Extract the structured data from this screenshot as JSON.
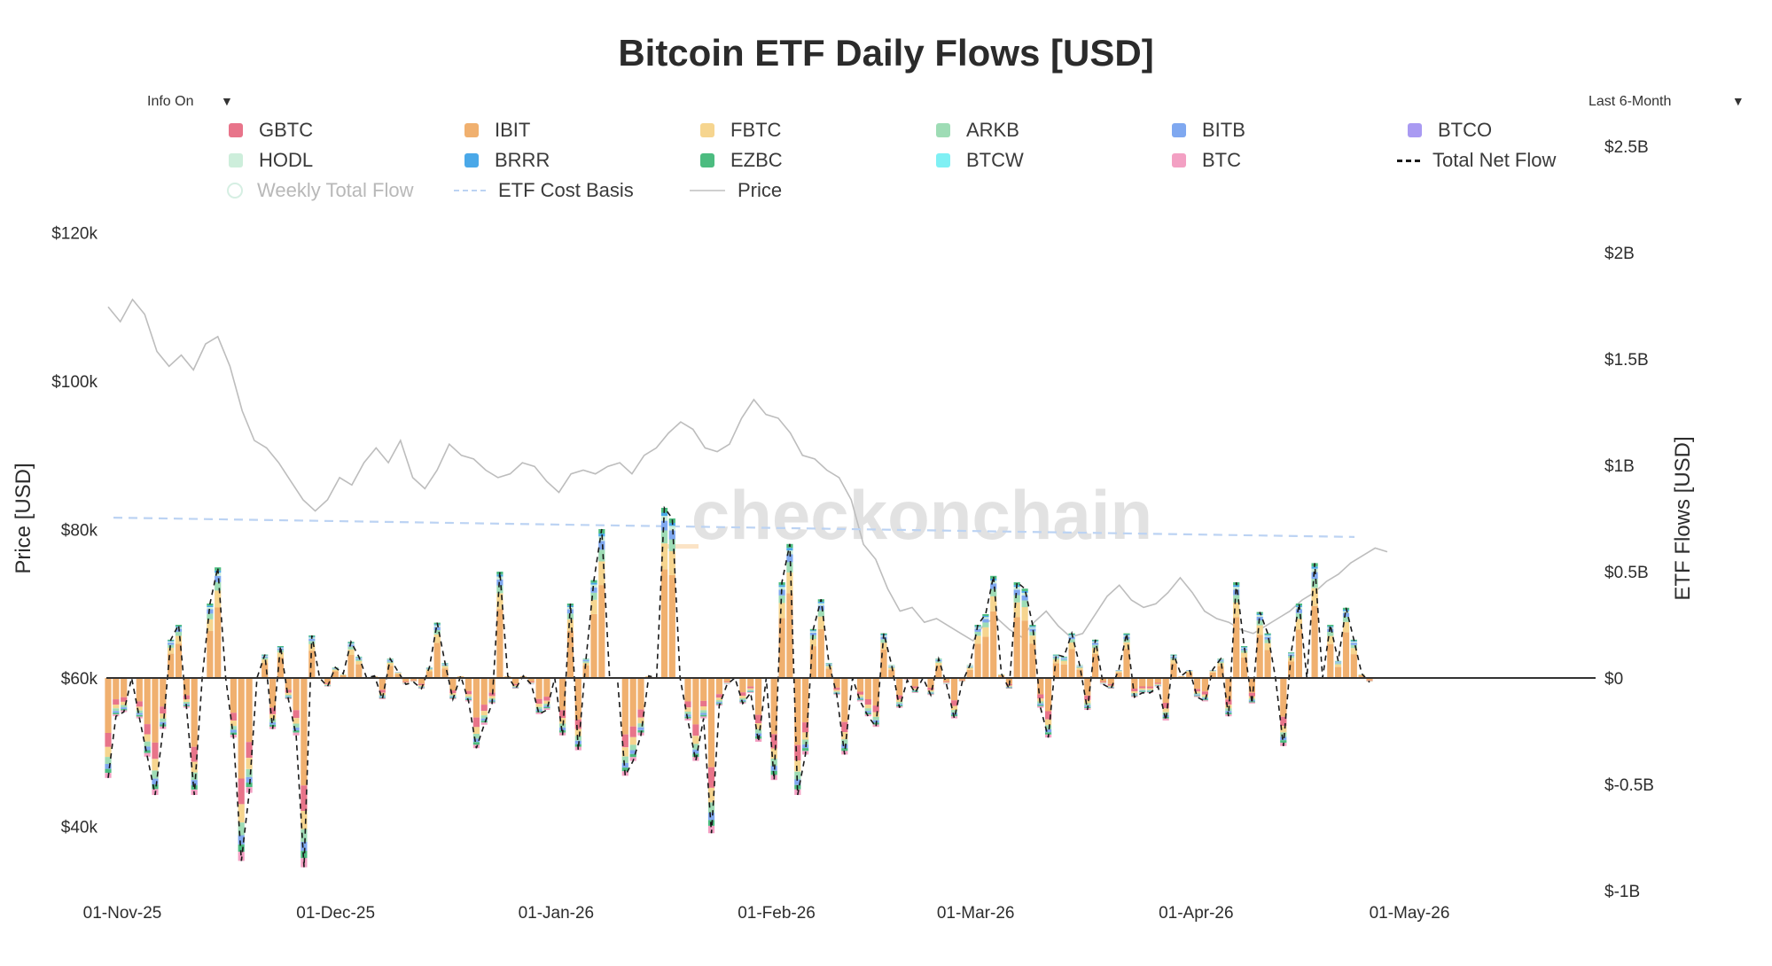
{
  "header": {
    "title": "Bitcoin ETF Daily Flows [USD]",
    "info_toggle": "Info On",
    "range_select": "Last 6-Month",
    "dropdown_arrow": "▼"
  },
  "watermark": "checkonchain",
  "colors": {
    "GBTC": "#e8748a",
    "IBIT": "#f0b06f",
    "FBTC": "#f6d58f",
    "ARKB": "#9edcb5",
    "BITB": "#7fa8f0",
    "BTCO": "#a99af2",
    "HODL": "#cdeedb",
    "BRRR": "#4aa8e8",
    "EZBC": "#4cbc80",
    "BTCW": "#7ff0f4",
    "BTC": "#f3a0c3",
    "price": "#bdbdbd",
    "cost_basis": "#bcd3f3",
    "total_net_flow": "#1a1a1a"
  },
  "legend": [
    {
      "key": "GBTC",
      "label": "GBTC",
      "color": "#e8748a",
      "type": "bar"
    },
    {
      "key": "IBIT",
      "label": "IBIT",
      "color": "#f0b06f",
      "type": "bar"
    },
    {
      "key": "FBTC",
      "label": "FBTC",
      "color": "#f6d58f",
      "type": "bar"
    },
    {
      "key": "ARKB",
      "label": "ARKB",
      "color": "#9edcb5",
      "type": "bar"
    },
    {
      "key": "BITB",
      "label": "BITB",
      "color": "#7fa8f0",
      "type": "bar"
    },
    {
      "key": "BTCO",
      "label": "BTCO",
      "color": "#a99af2",
      "type": "bar"
    },
    {
      "key": "HODL",
      "label": "HODL",
      "color": "#cdeedb",
      "type": "bar"
    },
    {
      "key": "BRRR",
      "label": "BRRR",
      "color": "#4aa8e8",
      "type": "bar"
    },
    {
      "key": "EZBC",
      "label": "EZBC",
      "color": "#4cbc80",
      "type": "bar"
    },
    {
      "key": "BTCW",
      "label": "BTCW",
      "color": "#7ff0f4",
      "type": "bar"
    },
    {
      "key": "BTC",
      "label": "BTC",
      "color": "#f3a0c3",
      "type": "bar"
    },
    {
      "key": "total",
      "label": "Total Net Flow",
      "color": "#1a1a1a",
      "type": "dash"
    },
    {
      "key": "weekly",
      "label": "Weekly Total Flow",
      "color": "#d6efe3",
      "type": "circle"
    },
    {
      "key": "cost",
      "label": "ETF Cost Basis",
      "color": "#bcd3f3",
      "type": "dash"
    },
    {
      "key": "price",
      "label": "Price",
      "color": "#bdbdbd",
      "type": "line"
    }
  ],
  "chart_data": {
    "type": "bar",
    "title": "Bitcoin ETF Daily Flows [USD]",
    "xlabel": "",
    "ylabel": "Price [USD]",
    "y2label": "ETF Flows [USD]",
    "x_range": [
      "2025-11-01",
      "2026-05-20"
    ],
    "x_ticks": [
      "01-Nov-25",
      "01-Dec-25",
      "01-Jan-26",
      "01-Feb-26",
      "01-Mar-26",
      "01-Apr-26",
      "01-May-26"
    ],
    "y_left_ticks": [
      "$40k",
      "$60k",
      "$80k",
      "$100k",
      "$120k"
    ],
    "y_left_tick_values": [
      40000,
      60000,
      80000,
      100000,
      120000
    ],
    "ylim_left": [
      30000,
      130000
    ],
    "y_right_ticks": [
      "$-1B",
      "$-0.5B",
      "$0",
      "$0.5B",
      "$1B",
      "$1.5B",
      "$2B",
      "$2.5B"
    ],
    "y_right_tick_values": [
      -1.0,
      -0.5,
      0,
      0.5,
      1.0,
      1.5,
      2.0,
      2.5
    ],
    "ylim_right_billions": [
      -1.0,
      2.5
    ],
    "stack_order": [
      "IBIT",
      "FBTC",
      "GBTC",
      "ARKB",
      "BITB",
      "HODL",
      "BRRR",
      "EZBC",
      "BTC",
      "BTCO",
      "BTCW"
    ],
    "daily_net_flow_billions": [
      -0.47,
      -0.18,
      -0.16,
      0.0,
      -0.19,
      -0.37,
      -0.55,
      -0.24,
      0.18,
      0.25,
      -0.14,
      -0.55,
      0.0,
      0.35,
      0.52,
      0.0,
      -0.28,
      -0.86,
      -0.54,
      0.0,
      0.11,
      -0.24,
      0.15,
      -0.1,
      -0.27,
      -0.89,
      0.2,
      0.0,
      -0.04,
      0.05,
      0.02,
      0.17,
      0.1,
      0.0,
      0.01,
      -0.1,
      0.09,
      0.03,
      -0.03,
      -0.02,
      -0.05,
      0.05,
      0.26,
      0.07,
      -0.1,
      0.01,
      -0.11,
      -0.33,
      -0.22,
      -0.12,
      0.5,
      0.01,
      -0.05,
      0.01,
      -0.03,
      -0.17,
      -0.15,
      0.0,
      -0.27,
      0.35,
      -0.34,
      0.09,
      0.46,
      0.7,
      0.0,
      0.0,
      -0.46,
      -0.39,
      -0.27,
      0.01,
      0.0,
      0.8,
      0.75,
      0.0,
      -0.2,
      -0.39,
      -0.19,
      -0.73,
      -0.13,
      -0.03,
      0.0,
      -0.12,
      -0.07,
      -0.3,
      0.0,
      -0.48,
      0.45,
      0.63,
      -0.55,
      -0.36,
      0.23,
      0.37,
      0.07,
      -0.08,
      -0.36,
      0.0,
      -0.11,
      -0.18,
      -0.23,
      0.21,
      0.06,
      -0.14,
      -0.01,
      -0.07,
      0.0,
      -0.08,
      0.09,
      -0.03,
      -0.19,
      -0.02,
      0.06,
      0.25,
      0.3,
      0.48,
      0.02,
      -0.05,
      0.45,
      0.42,
      0.25,
      -0.14,
      -0.28,
      0.11,
      0.1,
      0.21,
      0.06,
      -0.15,
      0.18,
      -0.03,
      -0.05,
      0.04,
      0.21,
      -0.09,
      -0.07,
      -0.07,
      -0.04,
      -0.2,
      0.11,
      0.01,
      0.04,
      -0.09,
      -0.11,
      0.04,
      0.09,
      -0.18,
      0.45,
      0.15,
      -0.12,
      0.31,
      0.21,
      0.0,
      -0.32,
      0.12,
      0.35,
      0.0,
      0.54,
      0.0,
      0.25,
      0.08,
      0.33,
      0.18,
      0.02,
      -0.02
    ],
    "price_series_usd": [
      110000,
      108000,
      111000,
      109000,
      104000,
      102000,
      103500,
      101500,
      105000,
      106000,
      102000,
      96000,
      92000,
      91000,
      89000,
      86500,
      84000,
      82500,
      84000,
      87000,
      86000,
      89000,
      91000,
      89000,
      92000,
      87000,
      85500,
      88000,
      91500,
      90000,
      89500,
      88000,
      87000,
      87500,
      89000,
      88500,
      86500,
      85000,
      87500,
      88000,
      87500,
      88500,
      89000,
      87500,
      90000,
      91000,
      93000,
      94500,
      93500,
      91000,
      90500,
      91500,
      95000,
      97500,
      95500,
      95000,
      93000,
      90000,
      89500,
      88000,
      87000,
      84000,
      78000,
      76000,
      72000,
      69000,
      69500,
      67500,
      68000,
      67000,
      66000,
      65000,
      67500,
      68000,
      66500,
      65500,
      67500,
      69000,
      67000,
      65500,
      66000,
      68500,
      71000,
      72500,
      70500,
      69500,
      70000,
      71500,
      73500,
      71500,
      69000,
      68000,
      67500,
      66500,
      66000,
      67000,
      68000,
      69000,
      70500,
      71500,
      73000,
      74000,
      75500,
      76500,
      77500,
      77000
    ],
    "etf_cost_basis_usd_start": 81600,
    "etf_cost_basis_usd_end": 79000
  }
}
